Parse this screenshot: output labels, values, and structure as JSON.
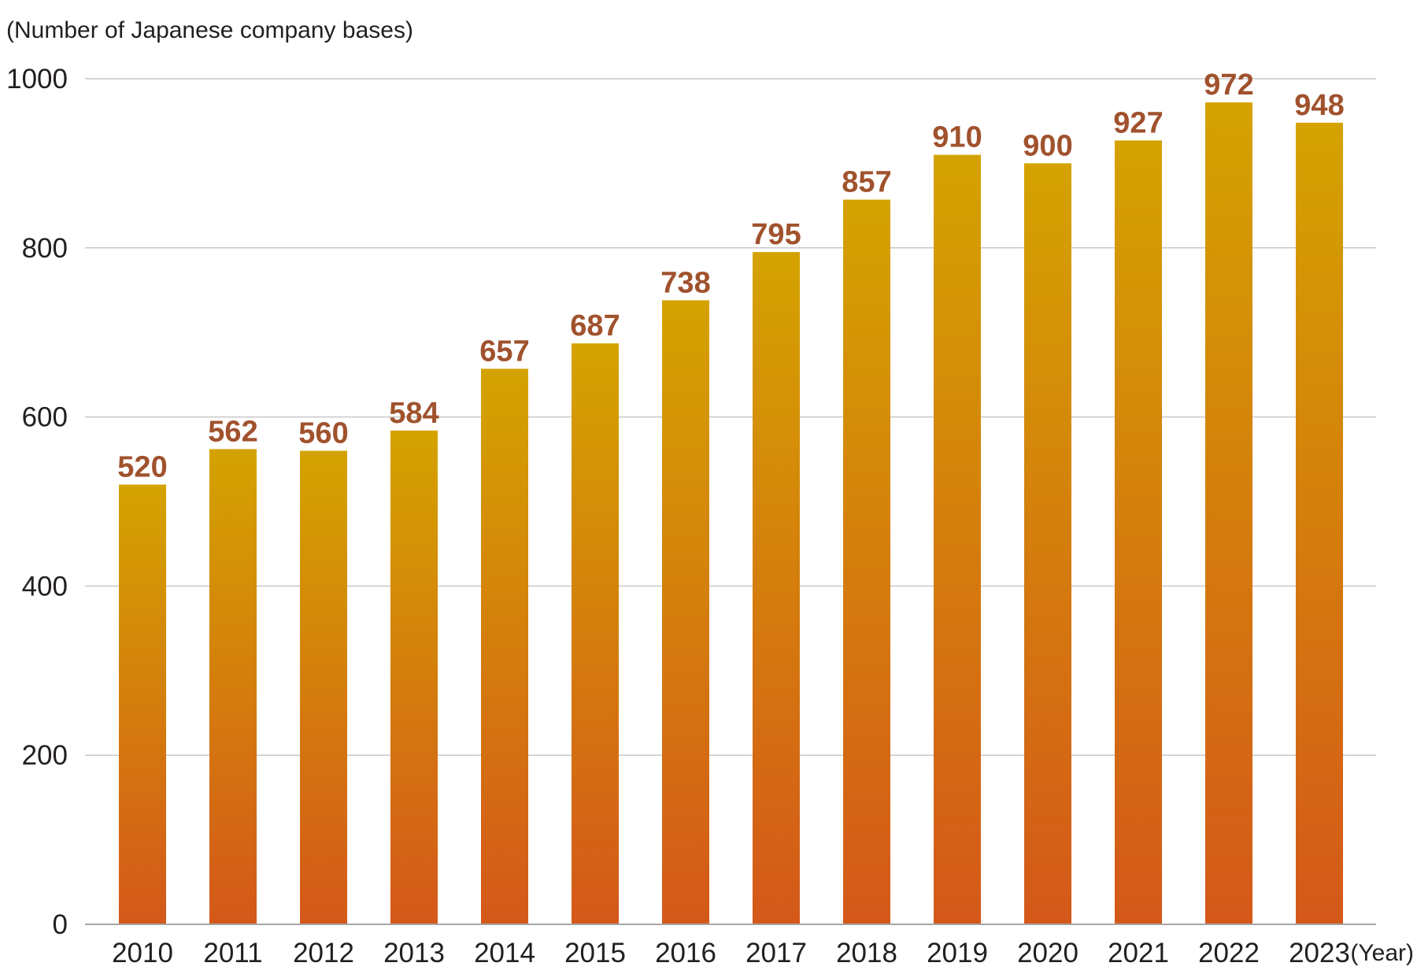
{
  "chart_data": {
    "type": "bar",
    "title": "",
    "ylabel": "(Number of Japanese company bases)",
    "xlabel": "(Year)",
    "categories": [
      "2010",
      "2011",
      "2012",
      "2013",
      "2014",
      "2015",
      "2016",
      "2017",
      "2018",
      "2019",
      "2020",
      "2021",
      "2022",
      "2023"
    ],
    "values": [
      520,
      562,
      560,
      584,
      657,
      687,
      738,
      795,
      857,
      910,
      900,
      927,
      972,
      948
    ],
    "ylim": [
      0,
      1000
    ],
    "yticks": [
      "0",
      "200",
      "400",
      "600",
      "800",
      "1000"
    ],
    "grid": true,
    "legend": "none",
    "colors": {
      "bar_top": "#d4a300",
      "bar_bottom": "#d4581a",
      "data_label": "#a0522d",
      "grid": "#c8c8c8"
    }
  }
}
